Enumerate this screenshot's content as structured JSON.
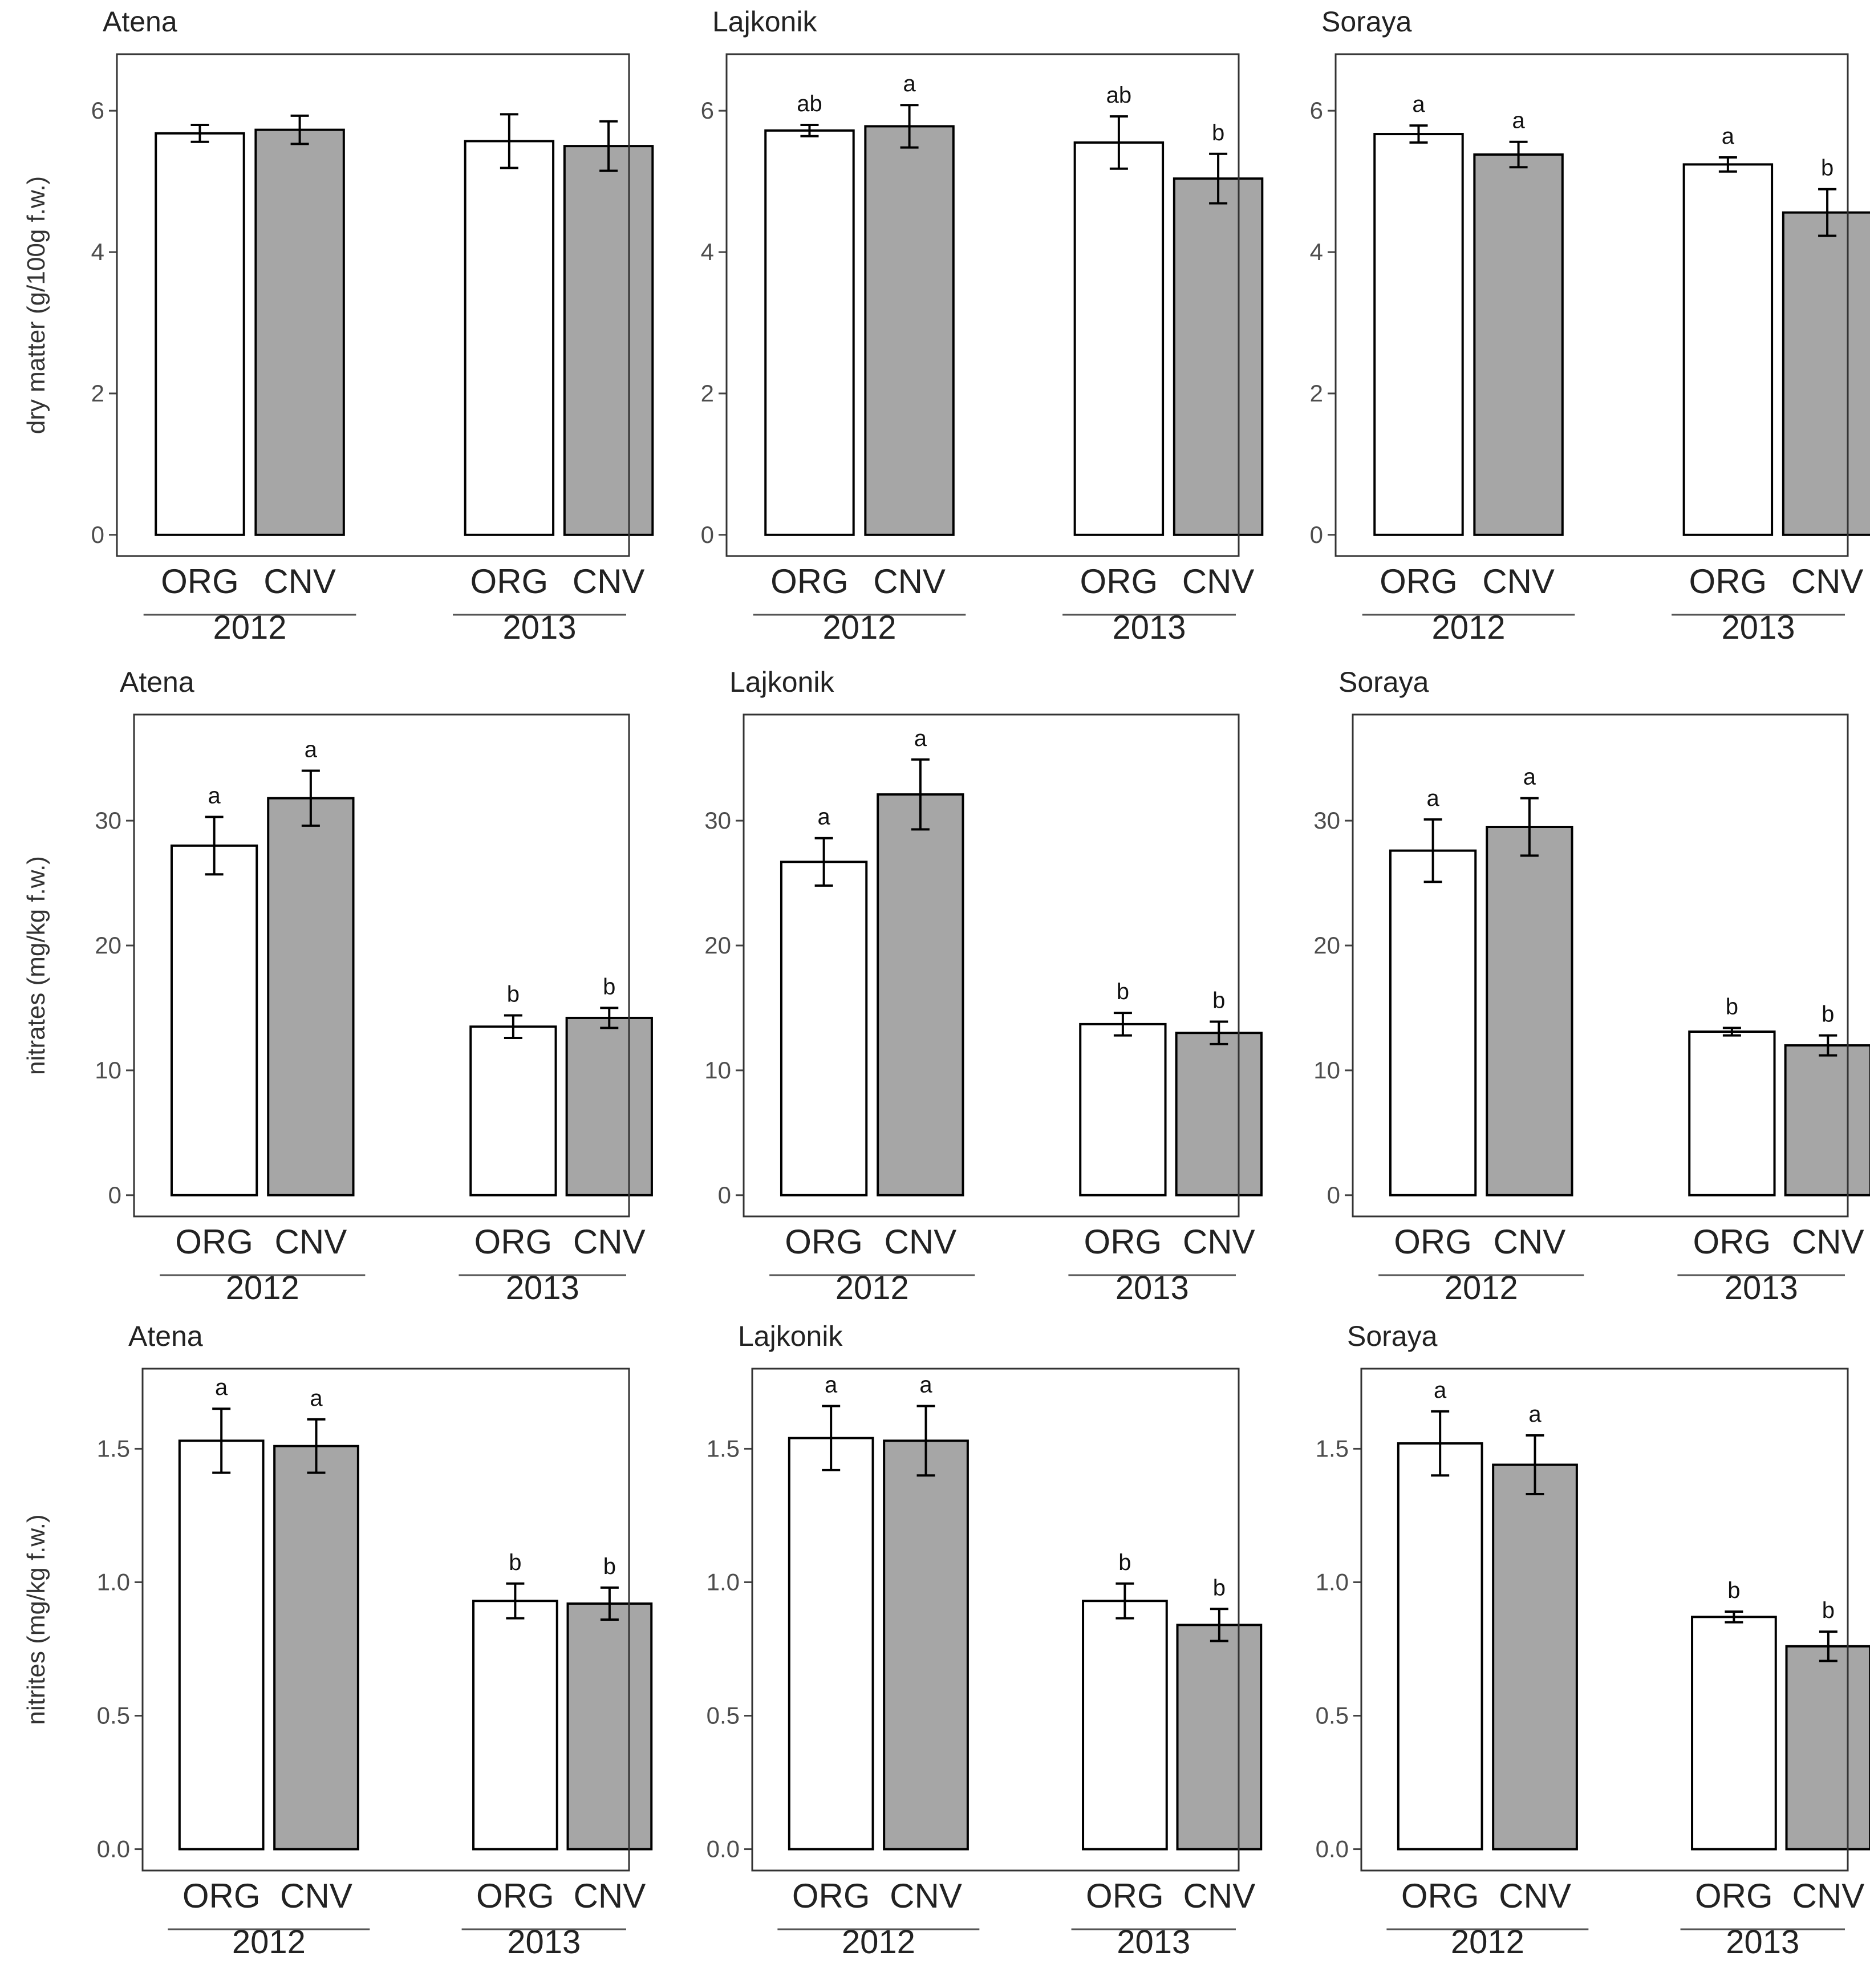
{
  "figure": {
    "group_labels": [
      "ORG",
      "CNV"
    ],
    "colors": {
      "ORG": "#ffffff",
      "CNV": "#a6a6a6",
      "stroke": "#000000",
      "frame": "#333333"
    }
  },
  "chart_data": [
    {
      "type": "bar",
      "title": "Atena",
      "ylabel": "dry matter (g/100g f.w.)",
      "ylim": [
        -0.3,
        6.8
      ],
      "yticks": [
        0,
        2,
        4,
        6
      ],
      "tick_labels": [
        "0",
        "2",
        "4",
        "6"
      ],
      "years": [
        "2012",
        "2013"
      ],
      "groups": [
        "ORG",
        "CNV"
      ],
      "series": [
        {
          "name": "ORG",
          "values": [
            5.68,
            5.57
          ],
          "err": [
            0.12,
            0.38
          ],
          "sig": [
            "",
            ""
          ]
        },
        {
          "name": "CNV",
          "values": [
            5.73,
            5.5
          ],
          "err": [
            0.2,
            0.35
          ],
          "sig": [
            "",
            ""
          ]
        }
      ]
    },
    {
      "type": "bar",
      "title": "Lajkonik",
      "ylabel": "dry matter (g/100g f.w.)",
      "ylim": [
        -0.3,
        6.8
      ],
      "yticks": [
        0,
        2,
        4,
        6
      ],
      "tick_labels": [
        "0",
        "2",
        "4",
        "6"
      ],
      "years": [
        "2012",
        "2013"
      ],
      "groups": [
        "ORG",
        "CNV"
      ],
      "series": [
        {
          "name": "ORG",
          "values": [
            5.72,
            5.55
          ],
          "err": [
            0.08,
            0.37
          ],
          "sig": [
            "ab",
            "ab"
          ]
        },
        {
          "name": "CNV",
          "values": [
            5.78,
            5.04
          ],
          "err": [
            0.3,
            0.35
          ],
          "sig": [
            "a",
            "b"
          ]
        }
      ]
    },
    {
      "type": "bar",
      "title": "Soraya",
      "ylabel": "dry matter (g/100g f.w.)",
      "ylim": [
        -0.3,
        6.8
      ],
      "yticks": [
        0,
        2,
        4,
        6
      ],
      "tick_labels": [
        "0",
        "2",
        "4",
        "6"
      ],
      "years": [
        "2012",
        "2013"
      ],
      "groups": [
        "ORG",
        "CNV"
      ],
      "series": [
        {
          "name": "ORG",
          "values": [
            5.67,
            5.24
          ],
          "err": [
            0.12,
            0.1
          ],
          "sig": [
            "a",
            "a"
          ]
        },
        {
          "name": "CNV",
          "values": [
            5.38,
            4.56
          ],
          "err": [
            0.18,
            0.33
          ],
          "sig": [
            "a",
            "b"
          ]
        }
      ]
    },
    {
      "type": "bar",
      "title": "Atena",
      "ylabel": "nitrates (mg/kg f.w.)",
      "ylim": [
        -1.7,
        38.5
      ],
      "yticks": [
        0,
        10,
        20,
        30
      ],
      "tick_labels": [
        "0",
        "10",
        "20",
        "30"
      ],
      "years": [
        "2012",
        "2013"
      ],
      "groups": [
        "ORG",
        "CNV"
      ],
      "series": [
        {
          "name": "ORG",
          "values": [
            28.0,
            13.5
          ],
          "err": [
            2.3,
            0.9
          ],
          "sig": [
            "a",
            "b"
          ]
        },
        {
          "name": "CNV",
          "values": [
            31.8,
            14.2
          ],
          "err": [
            2.2,
            0.8
          ],
          "sig": [
            "a",
            "b"
          ]
        }
      ]
    },
    {
      "type": "bar",
      "title": "Lajkonik",
      "ylabel": "nitrates (mg/kg f.w.)",
      "ylim": [
        -1.7,
        38.5
      ],
      "yticks": [
        0,
        10,
        20,
        30
      ],
      "tick_labels": [
        "0",
        "10",
        "20",
        "30"
      ],
      "years": [
        "2012",
        "2013"
      ],
      "groups": [
        "ORG",
        "CNV"
      ],
      "series": [
        {
          "name": "ORG",
          "values": [
            26.7,
            13.7
          ],
          "err": [
            1.9,
            0.9
          ],
          "sig": [
            "a",
            "b"
          ]
        },
        {
          "name": "CNV",
          "values": [
            32.1,
            13.0
          ],
          "err": [
            2.8,
            0.9
          ],
          "sig": [
            "a",
            "b"
          ]
        }
      ]
    },
    {
      "type": "bar",
      "title": "Soraya",
      "ylabel": "nitrates (mg/kg f.w.)",
      "ylim": [
        -1.7,
        38.5
      ],
      "yticks": [
        0,
        10,
        20,
        30
      ],
      "tick_labels": [
        "0",
        "10",
        "20",
        "30"
      ],
      "years": [
        "2012",
        "2013"
      ],
      "groups": [
        "ORG",
        "CNV"
      ],
      "series": [
        {
          "name": "ORG",
          "values": [
            27.6,
            13.1
          ],
          "err": [
            2.5,
            0.3
          ],
          "sig": [
            "a",
            "b"
          ]
        },
        {
          "name": "CNV",
          "values": [
            29.5,
            12.0
          ],
          "err": [
            2.3,
            0.8
          ],
          "sig": [
            "a",
            "b"
          ]
        }
      ]
    },
    {
      "type": "bar",
      "title": "Atena",
      "ylabel": "nitrites (mg/kg f.w.)",
      "ylim": [
        -0.08,
        1.8
      ],
      "yticks": [
        0.0,
        0.5,
        1.0,
        1.5
      ],
      "tick_labels": [
        "0.0",
        "0.5",
        "1.0",
        "1.5"
      ],
      "years": [
        "2012",
        "2013"
      ],
      "groups": [
        "ORG",
        "CNV"
      ],
      "series": [
        {
          "name": "ORG",
          "values": [
            1.53,
            0.93
          ],
          "err": [
            0.12,
            0.065
          ],
          "sig": [
            "a",
            "b"
          ]
        },
        {
          "name": "CNV",
          "values": [
            1.51,
            0.92
          ],
          "err": [
            0.1,
            0.06
          ],
          "sig": [
            "a",
            "b"
          ]
        }
      ]
    },
    {
      "type": "bar",
      "title": "Lajkonik",
      "ylabel": "nitrites (mg/kg f.w.)",
      "ylim": [
        -0.08,
        1.8
      ],
      "yticks": [
        0.0,
        0.5,
        1.0,
        1.5
      ],
      "tick_labels": [
        "0.0",
        "0.5",
        "1.0",
        "1.5"
      ],
      "years": [
        "2012",
        "2013"
      ],
      "groups": [
        "ORG",
        "CNV"
      ],
      "series": [
        {
          "name": "ORG",
          "values": [
            1.54,
            0.93
          ],
          "err": [
            0.12,
            0.065
          ],
          "sig": [
            "a",
            "b"
          ]
        },
        {
          "name": "CNV",
          "values": [
            1.53,
            0.84
          ],
          "err": [
            0.13,
            0.06
          ],
          "sig": [
            "a",
            "b"
          ]
        }
      ]
    },
    {
      "type": "bar",
      "title": "Soraya",
      "ylabel": "nitrites (mg/kg f.w.)",
      "ylim": [
        -0.08,
        1.8
      ],
      "yticks": [
        0.0,
        0.5,
        1.0,
        1.5
      ],
      "tick_labels": [
        "0.0",
        "0.5",
        "1.0",
        "1.5"
      ],
      "years": [
        "2012",
        "2013"
      ],
      "groups": [
        "ORG",
        "CNV"
      ],
      "series": [
        {
          "name": "ORG",
          "values": [
            1.52,
            0.87
          ],
          "err": [
            0.12,
            0.02
          ],
          "sig": [
            "a",
            "b"
          ]
        },
        {
          "name": "CNV",
          "values": [
            1.44,
            0.76
          ],
          "err": [
            0.11,
            0.055
          ],
          "sig": [
            "a",
            "b"
          ]
        }
      ]
    }
  ]
}
